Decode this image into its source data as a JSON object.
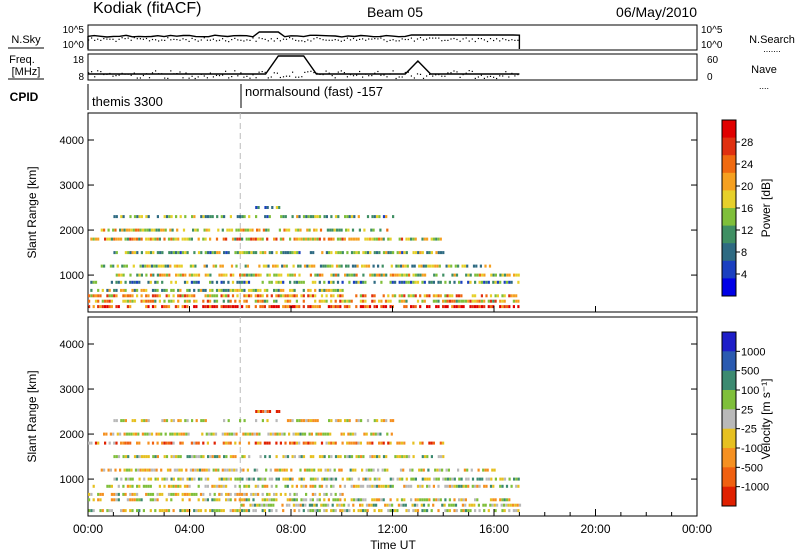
{
  "header": {
    "station": "Kodiak (fitACF)",
    "beam": "Beam 05",
    "date": "06/May/2010"
  },
  "noise_panel": {
    "left_label": "N.Sky",
    "left_ticks": [
      "10^5",
      "10^0"
    ],
    "right_ticks": [
      "10^5",
      "10^0"
    ],
    "right_label": "N.Search",
    "right_legend": "......."
  },
  "freq_panel": {
    "left_label_1": "Freq.",
    "left_label_2": "[MHz]",
    "left_ticks": [
      "18",
      "8"
    ],
    "right_ticks": [
      "60",
      "0"
    ],
    "right_label": "Nave",
    "right_legend": "...."
  },
  "cpid": {
    "label": "CPID",
    "modes": [
      {
        "text": "themis 3300",
        "start_hour": 0
      },
      {
        "text": "normalsound (fast) -157",
        "start_hour": 6
      }
    ]
  },
  "time_axis": {
    "label": "Time UT",
    "ticks": [
      "00:00",
      "04:00",
      "08:00",
      "12:00",
      "16:00",
      "20:00",
      "00:00"
    ]
  },
  "colorbars": {
    "power": {
      "label": "Power [dB]",
      "ticks": [
        "28",
        "24",
        "20",
        "16",
        "12",
        "8",
        "4"
      ],
      "colors": [
        "#0000e6",
        "#1a3fc0",
        "#2e6a82",
        "#3f8f63",
        "#7fbf3a",
        "#e6d02a",
        "#f5a020",
        "#f06a10",
        "#e03010",
        "#e00000"
      ]
    },
    "velocity": {
      "label": "Velocity [m s⁻¹]",
      "ticks": [
        "1000",
        "500",
        "100",
        "25",
        "-25",
        "-100",
        "-500",
        "-1000"
      ],
      "colors": [
        "#1e1ec8",
        "#2a5ab0",
        "#3c8a70",
        "#7fbf3a",
        "#b9b9b9",
        "#e6c020",
        "#f59020",
        "#f06010",
        "#e02000"
      ]
    }
  },
  "chart_data": [
    {
      "type": "heatmap",
      "title": "Power",
      "ylabel": "Slant Range [km]",
      "xlabel": "Time UT",
      "xlim": [
        0,
        24
      ],
      "ylim": [
        180,
        4600
      ],
      "yticks": [
        1000,
        2000,
        3000,
        4000
      ],
      "colorbar": {
        "label": "Power [dB]",
        "range": [
          0,
          30
        ]
      },
      "data_extent_hours": [
        0,
        17
      ],
      "bands": [
        {
          "range_km": 300,
          "hours": [
            0,
            17
          ],
          "value": 26
        },
        {
          "range_km": 420,
          "hours": [
            0,
            17
          ],
          "value": 18
        },
        {
          "range_km": 540,
          "hours": [
            0,
            17
          ],
          "value": 20
        },
        {
          "range_km": 660,
          "hours": [
            0,
            10
          ],
          "value": 14
        },
        {
          "range_km": 840,
          "hours": [
            0,
            17
          ],
          "value": 10
        },
        {
          "range_km": 1000,
          "hours": [
            1,
            17
          ],
          "value": 16
        },
        {
          "range_km": 1200,
          "hours": [
            0.5,
            16
          ],
          "value": 14
        },
        {
          "range_km": 1500,
          "hours": [
            1,
            14
          ],
          "value": 12
        },
        {
          "range_km": 1800,
          "hours": [
            0,
            14
          ],
          "value": 18
        },
        {
          "range_km": 2000,
          "hours": [
            0.5,
            12
          ],
          "value": 16
        },
        {
          "range_km": 2300,
          "hours": [
            1,
            12
          ],
          "value": 12
        },
        {
          "range_km": 2500,
          "hours": [
            6.5,
            7.5
          ],
          "value": 10
        }
      ]
    },
    {
      "type": "heatmap",
      "title": "Velocity",
      "ylabel": "Slant Range [km]",
      "xlabel": "Time UT",
      "xlim": [
        0,
        24
      ],
      "ylim": [
        180,
        4600
      ],
      "yticks": [
        1000,
        2000,
        3000,
        4000
      ],
      "colorbar": {
        "label": "Velocity [m s⁻¹]",
        "range": [
          -1000,
          1000
        ]
      },
      "data_extent_hours": [
        0,
        17
      ],
      "bands": [
        {
          "range_km": 300,
          "hours": [
            0,
            17
          ],
          "value": 0
        },
        {
          "range_km": 420,
          "hours": [
            6,
            17
          ],
          "value": 30
        },
        {
          "range_km": 540,
          "hours": [
            0,
            17
          ],
          "value": -20
        },
        {
          "range_km": 660,
          "hours": [
            0,
            10
          ],
          "value": -100
        },
        {
          "range_km": 840,
          "hours": [
            0,
            17
          ],
          "value": -50
        },
        {
          "range_km": 1000,
          "hours": [
            1,
            17
          ],
          "value": 100
        },
        {
          "range_km": 1200,
          "hours": [
            0.5,
            16
          ],
          "value": -100
        },
        {
          "range_km": 1500,
          "hours": [
            1,
            14
          ],
          "value": 50
        },
        {
          "range_km": 1800,
          "hours": [
            0,
            14
          ],
          "value": -500
        },
        {
          "range_km": 2000,
          "hours": [
            0.5,
            12
          ],
          "value": -100
        },
        {
          "range_km": 2300,
          "hours": [
            1,
            12
          ],
          "value": -100
        },
        {
          "range_km": 2500,
          "hours": [
            6.5,
            7.5
          ],
          "value": -500
        }
      ]
    }
  ]
}
